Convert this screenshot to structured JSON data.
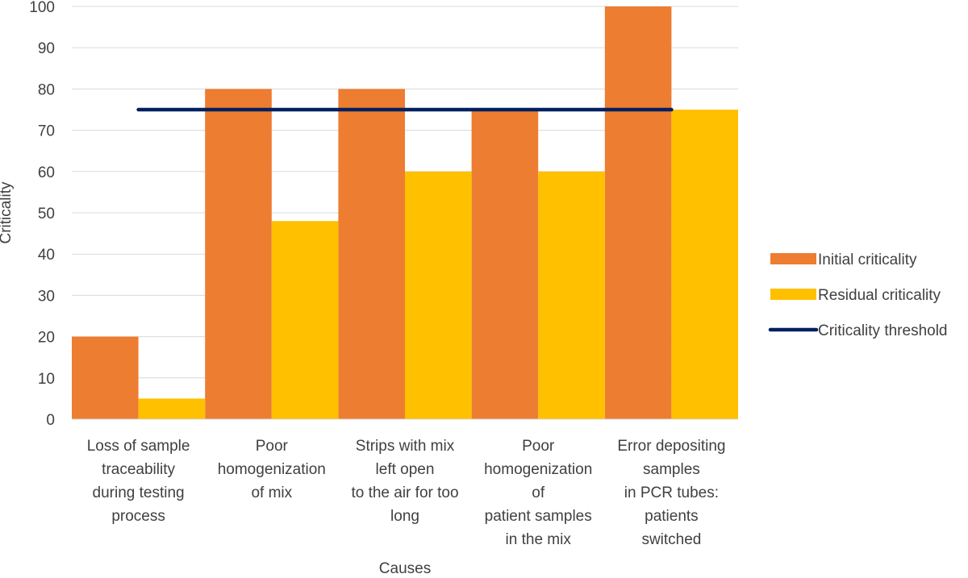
{
  "chart_data": {
    "type": "bar",
    "title": "",
    "xlabel": "Causes",
    "ylabel": "Criticality",
    "ylim": [
      0,
      100
    ],
    "yticks": [
      0,
      10,
      20,
      30,
      40,
      50,
      60,
      70,
      80,
      90,
      100
    ],
    "grid": true,
    "legend_position": "right",
    "categories": [
      [
        "Loss of sample",
        "traceability",
        "during testing",
        "process"
      ],
      [
        "Poor",
        "homogenization",
        "of mix"
      ],
      [
        "Strips with mix",
        "left open",
        "to the air for too",
        "long"
      ],
      [
        "Poor",
        "homogenization",
        "of",
        "patient samples",
        "in the mix"
      ],
      [
        "Error depositing",
        "samples",
        "in PCR tubes:",
        "patients",
        "switched"
      ]
    ],
    "series": [
      {
        "name": "Initial criticality",
        "type": "bar",
        "color": "#ED7D31",
        "values": [
          20,
          80,
          80,
          75,
          100
        ]
      },
      {
        "name": "Residual criticality",
        "type": "bar",
        "color": "#FFC000",
        "values": [
          5,
          48,
          60,
          60,
          75
        ]
      },
      {
        "name": "Criticality threshold",
        "type": "line",
        "color": "#002060",
        "values": [
          75,
          75,
          75,
          75,
          75
        ]
      }
    ]
  }
}
